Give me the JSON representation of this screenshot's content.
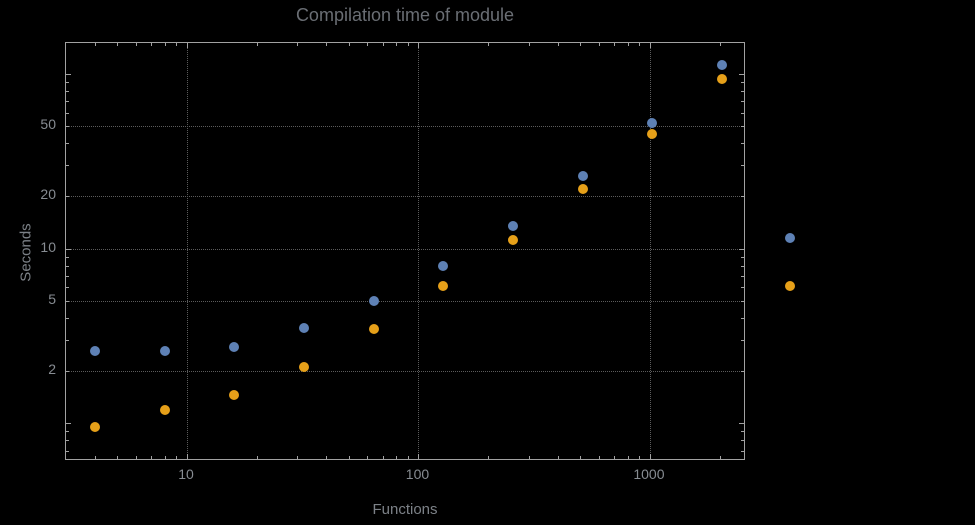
{
  "title": "Compilation time of module",
  "xlabel": "Functions",
  "ylabel": "Seconds",
  "colors": {
    "background": "#000000",
    "frame": "#a2a2a2",
    "grid": "#5c5c5c",
    "title": "#6a6e74",
    "tick_labels": "#878c92",
    "axis_labels": "#7c8187",
    "series_blue": "#5e81b5",
    "series_orange": "#e6a019"
  },
  "chart_data": {
    "type": "scatter",
    "xscale": "log",
    "yscale": "log",
    "x": [
      4,
      8,
      16,
      32,
      64,
      128,
      256,
      512,
      1024,
      2048
    ],
    "series": [
      {
        "name": "series-blue",
        "color": "#5e81b5",
        "values": [
          2.6,
          2.6,
          2.75,
          3.5,
          5.0,
          8.0,
          13.5,
          26,
          52,
          113
        ]
      },
      {
        "name": "series-orange",
        "color": "#e6a019",
        "values": [
          0.95,
          1.2,
          1.45,
          2.1,
          3.45,
          6.1,
          11.2,
          21.8,
          45,
          93
        ]
      }
    ],
    "title": "Compilation time of module",
    "xlabel": "Functions",
    "ylabel": "Seconds",
    "xlim": [
      3,
      2600
    ],
    "ylim": [
      0.61,
      150
    ],
    "xticks": [
      10,
      100,
      1000
    ],
    "yticks": [
      2,
      5,
      10,
      20,
      50
    ],
    "grid": true,
    "legend_position": "right-outside"
  },
  "legend": {
    "markers": [
      {
        "name": "legend-marker-blue",
        "color": "#5e81b5"
      },
      {
        "name": "legend-marker-orange",
        "color": "#e6a019"
      }
    ]
  }
}
